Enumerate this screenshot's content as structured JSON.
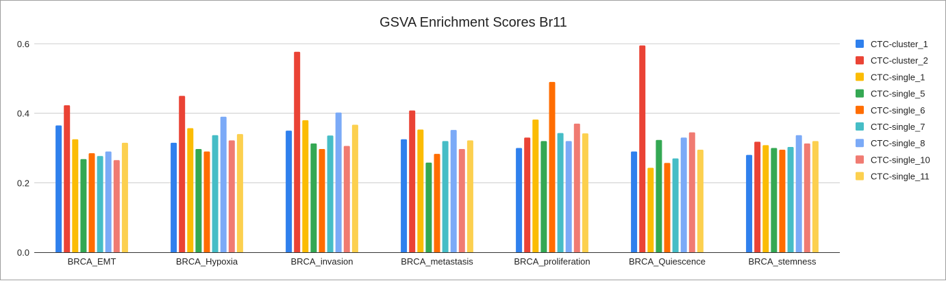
{
  "chart_data": {
    "type": "bar",
    "title": "GSVA Enrichment Scores Br11",
    "xlabel": "",
    "ylabel": "",
    "ylim": [
      0,
      0.6
    ],
    "yticks": [
      "0.0",
      "0.2",
      "0.4",
      "0.6"
    ],
    "grid": true,
    "legend_position": "right",
    "categories": [
      "BRCA_EMT",
      "BRCA_Hypoxia",
      "BRCA_invasion",
      "BRCA_metastasis",
      "BRCA_proliferation",
      "BRCA_Quiescence",
      "BRCA_stemness"
    ],
    "series": [
      {
        "name": "CTC-cluster_1",
        "color": "#2f80ed",
        "values": [
          0.365,
          0.315,
          0.35,
          0.325,
          0.3,
          0.29,
          0.28
        ]
      },
      {
        "name": "CTC-cluster_2",
        "color": "#ea4335",
        "values": [
          0.423,
          0.45,
          0.577,
          0.408,
          0.33,
          0.595,
          0.318
        ]
      },
      {
        "name": "CTC-single_1",
        "color": "#fbbc04",
        "values": [
          0.325,
          0.357,
          0.38,
          0.353,
          0.382,
          0.243,
          0.308
        ]
      },
      {
        "name": "CTC-single_5",
        "color": "#34a853",
        "values": [
          0.268,
          0.297,
          0.313,
          0.258,
          0.32,
          0.323,
          0.3
        ]
      },
      {
        "name": "CTC-single_6",
        "color": "#ff6d01",
        "values": [
          0.285,
          0.29,
          0.297,
          0.283,
          0.49,
          0.257,
          0.295
        ]
      },
      {
        "name": "CTC-single_7",
        "color": "#46bdc6",
        "values": [
          0.277,
          0.337,
          0.336,
          0.32,
          0.343,
          0.27,
          0.303
        ]
      },
      {
        "name": "CTC-single_8",
        "color": "#7baaf7",
        "values": [
          0.29,
          0.39,
          0.402,
          0.352,
          0.32,
          0.33,
          0.337
        ]
      },
      {
        "name": "CTC-single_10",
        "color": "#f07b72",
        "values": [
          0.265,
          0.322,
          0.306,
          0.297,
          0.37,
          0.345,
          0.313
        ]
      },
      {
        "name": "CTC-single_11",
        "color": "#fcd04f",
        "values": [
          0.315,
          0.34,
          0.367,
          0.322,
          0.342,
          0.295,
          0.32
        ]
      }
    ]
  }
}
